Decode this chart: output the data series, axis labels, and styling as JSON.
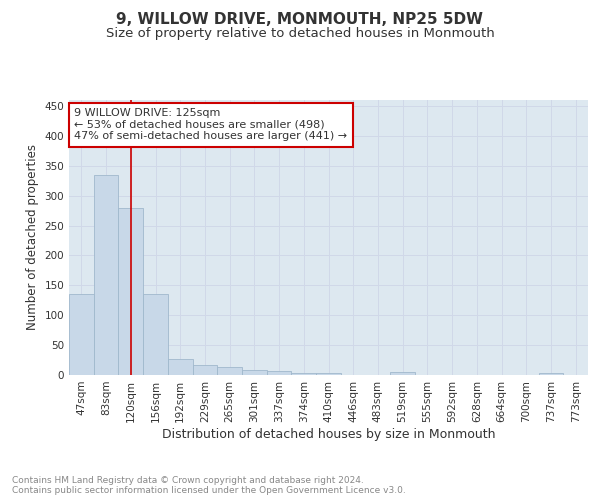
{
  "title1": "9, WILLOW DRIVE, MONMOUTH, NP25 5DW",
  "title2": "Size of property relative to detached houses in Monmouth",
  "xlabel": "Distribution of detached houses by size in Monmouth",
  "ylabel": "Number of detached properties",
  "bar_labels": [
    "47sqm",
    "83sqm",
    "120sqm",
    "156sqm",
    "192sqm",
    "229sqm",
    "265sqm",
    "301sqm",
    "337sqm",
    "374sqm",
    "410sqm",
    "446sqm",
    "483sqm",
    "519sqm",
    "555sqm",
    "592sqm",
    "628sqm",
    "664sqm",
    "700sqm",
    "737sqm",
    "773sqm"
  ],
  "bar_values": [
    136,
    335,
    280,
    135,
    27,
    17,
    13,
    8,
    6,
    4,
    3,
    0,
    0,
    5,
    0,
    0,
    0,
    0,
    0,
    4,
    0
  ],
  "bar_color": "#c8d8e8",
  "bar_edge_color": "#a0b8cc",
  "property_line_x": 2,
  "property_line_color": "#cc0000",
  "annotation_text": "9 WILLOW DRIVE: 125sqm\n← 53% of detached houses are smaller (498)\n47% of semi-detached houses are larger (441) →",
  "annotation_box_color": "#cc0000",
  "ylim": [
    0,
    460
  ],
  "yticks": [
    0,
    50,
    100,
    150,
    200,
    250,
    300,
    350,
    400,
    450
  ],
  "grid_color": "#d0d8e8",
  "background_color": "#dde8f0",
  "footer_text": "Contains HM Land Registry data © Crown copyright and database right 2024.\nContains public sector information licensed under the Open Government Licence v3.0.",
  "title1_fontsize": 11,
  "title2_fontsize": 9.5,
  "xlabel_fontsize": 9,
  "ylabel_fontsize": 8.5,
  "tick_fontsize": 7.5,
  "annotation_fontsize": 8,
  "footer_fontsize": 6.5,
  "footer_color": "#888888"
}
